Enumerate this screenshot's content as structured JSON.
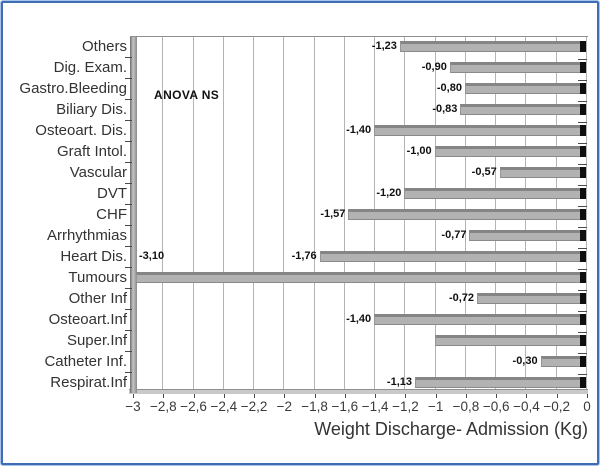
{
  "chart_data": {
    "type": "bar",
    "orientation": "horizontal",
    "title": "",
    "xlabel": "Weight Discharge- Admission (Kg)",
    "ylabel": "",
    "annotation": "ANOVA NS",
    "grid": true,
    "legend": null,
    "xlim": [
      -3,
      0
    ],
    "x_tick_step": 0.2,
    "x_tick_labels": [
      "−3",
      "−2,8",
      "−2,6",
      "−2,4",
      "−2,2",
      "−2",
      "−1,8",
      "−1,6",
      "−1,4",
      "−1,2",
      "−1",
      "−0,8",
      "−0,6",
      "−0,4",
      "−0,2",
      "0"
    ],
    "categories": [
      "Others",
      "Dig. Exam.",
      "Gastro.Bleeding",
      "Biliary Dis.",
      "Osteoart. Dis.",
      "Graft Intol.",
      "Vascular",
      "DVT",
      "CHF",
      "Arrhythmias",
      "Heart Dis.",
      "Tumours",
      "Other Inf",
      "Osteoart.Inf",
      "Super.Inf",
      "Catheter Inf.",
      "Respirat.Inf"
    ],
    "values": [
      -1.23,
      -0.9,
      -0.8,
      -0.83,
      -1.4,
      -1.0,
      -0.57,
      -1.2,
      -1.57,
      -0.77,
      -1.76,
      -3.1,
      -0.72,
      -1.4,
      -1.0,
      -0.3,
      -1.13
    ],
    "value_labels": [
      "-1,23",
      "-0,90",
      "-0,80",
      "-0,83",
      "-1,40",
      "-1,00",
      "-0,57",
      "-1,20",
      "-1,57",
      "-0,77",
      "-1,76",
      "-3,10",
      "-0,72",
      "-1,40",
      "",
      "-0,30",
      "-1,13"
    ],
    "colors": {
      "bar_fill": "#b2b2b2",
      "bar_top_edge": "#858585",
      "bar_end_cap": "#0f0f0f",
      "gridline": "#b4b4b4",
      "wall_gray": "#8a8a8a",
      "frame_outer_blue": "#a9c3e8",
      "frame_inner_blue": "#3e6db5",
      "text": "#333333"
    }
  }
}
